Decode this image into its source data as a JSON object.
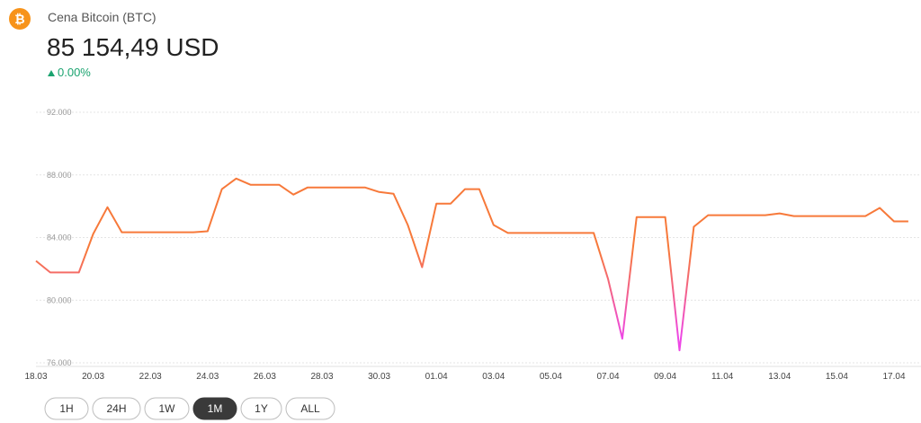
{
  "header": {
    "title": "Cena Bitcoin (BTC)",
    "price": "85 154,49 USD",
    "change": "0.00%"
  },
  "range_buttons": {
    "options": [
      "1H",
      "24H",
      "1W",
      "1M",
      "1Y",
      "ALL"
    ],
    "active_index": 3
  },
  "chart_data": {
    "type": "line",
    "categories": [
      "18.03",
      null,
      null,
      null,
      "20.03",
      null,
      null,
      null,
      "22.03",
      null,
      null,
      null,
      "24.03",
      null,
      null,
      null,
      "26.03",
      null,
      null,
      null,
      "28.03",
      null,
      null,
      null,
      "30.03",
      null,
      null,
      null,
      "01.04",
      null,
      null,
      null,
      "03.04",
      null,
      null,
      null,
      "05.04",
      null,
      null,
      null,
      "07.04",
      null,
      null,
      null,
      "09.04",
      null,
      null,
      null,
      "11.04",
      null,
      null,
      null,
      "13.04",
      null,
      null,
      null,
      "15.04",
      null,
      null,
      null,
      "17.04",
      null
    ],
    "values": [
      82510,
      81770,
      81770,
      81770,
      84230,
      85940,
      84340,
      84340,
      84340,
      84340,
      84340,
      84340,
      84400,
      87090,
      87770,
      87370,
      87370,
      87370,
      86740,
      87200,
      87200,
      87200,
      87200,
      87200,
      86910,
      86800,
      84800,
      82110,
      86170,
      86170,
      87090,
      87090,
      84800,
      84290,
      84290,
      84290,
      84290,
      84290,
      84290,
      84290,
      81370,
      77540,
      85310,
      85310,
      85310,
      76800,
      84690,
      85430,
      85430,
      85430,
      85430,
      85430,
      85540,
      85370,
      85370,
      85370,
      85370,
      85370,
      85370,
      85890,
      85030,
      85030
    ],
    "color": "#f7793a",
    "low_color": "#ee48e6",
    "ylim": [
      76000,
      92000
    ],
    "yticks": [
      {
        "value": 76000,
        "label": "76.000"
      },
      {
        "value": 80000,
        "label": "80.000"
      },
      {
        "value": 84000,
        "label": "84.000"
      },
      {
        "value": 88000,
        "label": "88.000"
      },
      {
        "value": 92000,
        "label": "92.000"
      }
    ],
    "grid": true
  }
}
